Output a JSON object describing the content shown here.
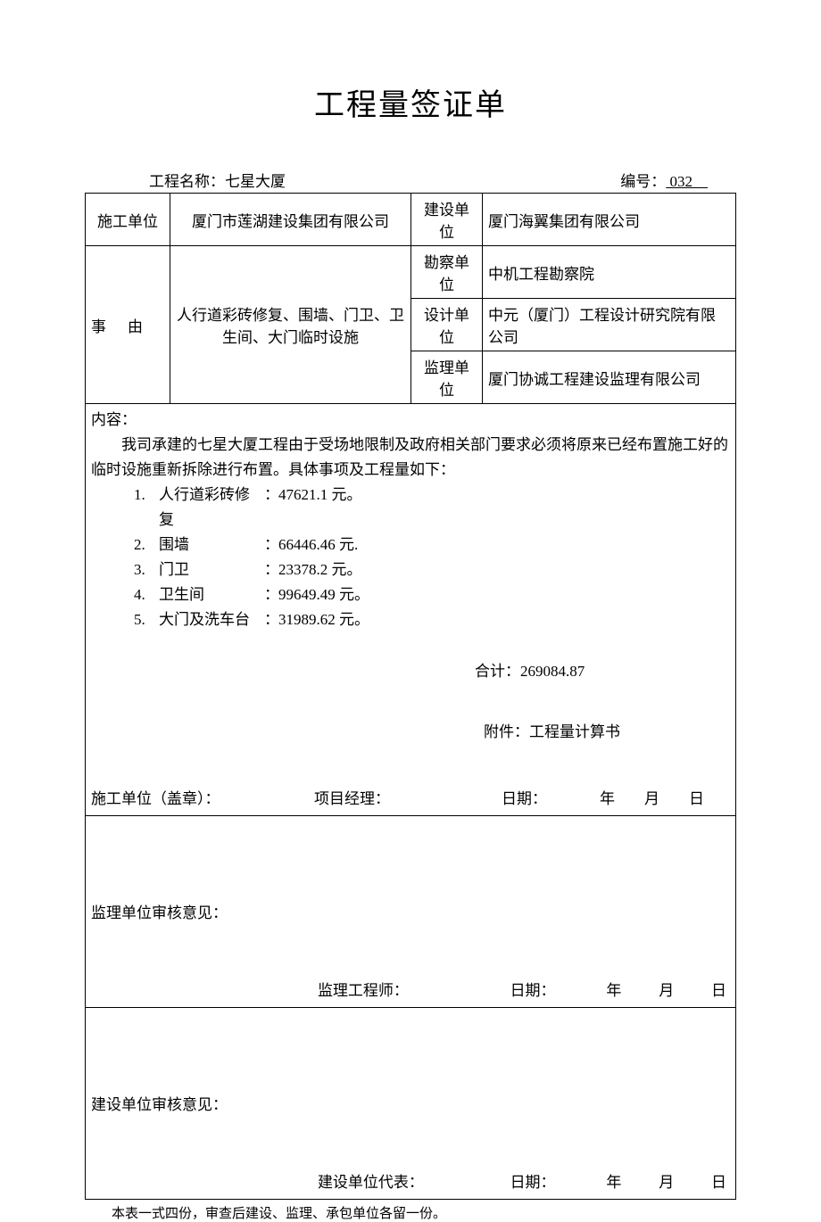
{
  "title": "工程量签证单",
  "header": {
    "project_label": "工程名称：",
    "project_name": "七星大厦",
    "serial_label": "编号：",
    "serial_no": "032"
  },
  "table": {
    "construction_unit_label": "施工单位",
    "construction_unit": "厦门市莲湖建设集团有限公司",
    "build_unit_label": "建设单位",
    "build_unit": "厦门海翼集团有限公司",
    "reason_label": "事由",
    "reason_text": "人行道彩砖修复、围墙、门卫、卫生间、大门临时设施",
    "survey_unit_label": "勘察单位",
    "survey_unit": "中机工程勘察院",
    "design_unit_label": "设计单位",
    "design_unit": "中元（厦门）工程设计研究院有限公司",
    "supervise_unit_label": "监理单位",
    "supervise_unit": "厦门协诚工程建设监理有限公司"
  },
  "content": {
    "heading": "内容：",
    "paragraph": "我司承建的七星大厦工程由于受场地限制及政府相关部门要求必须将原来已经布置施工好的临时设施重新拆除进行布置。具体事项及工程量如下：",
    "items": [
      {
        "num": "1.",
        "label": "人行道彩砖修复",
        "sep": "：",
        "value": "47621.1 元。"
      },
      {
        "num": "2.",
        "label": "围墙",
        "sep": "：",
        "value": "66446.46 元."
      },
      {
        "num": "3.",
        "label": "门卫",
        "sep": "：",
        "value": "23378.2 元。"
      },
      {
        "num": "4.",
        "label": "卫生间",
        "sep": "：",
        "value": "99649.49 元。"
      },
      {
        "num": "5.",
        "label": "大门及洗车台",
        "sep": "：",
        "value": "31989.62 元。"
      }
    ],
    "total": "合计：269084.87",
    "attachment": "附件：工程量计算书",
    "sig": {
      "unit_seal": "施工单位（盖章）：",
      "pm": "项目经理：",
      "date_label": "日期：",
      "year": "年",
      "month": "月",
      "day": "日"
    }
  },
  "review1": {
    "title": "监理单位审核意见：",
    "role": "监理工程师：",
    "date_label": "日期：",
    "year": "年",
    "month": "月",
    "day": "日"
  },
  "review2": {
    "title": "建设单位审核意见：",
    "role": "建设单位代表：",
    "date_label": "日期：",
    "year": "年",
    "month": "月",
    "day": "日"
  },
  "footnote": "本表一式四份，审查后建设、监理、承包单位各留一份。"
}
